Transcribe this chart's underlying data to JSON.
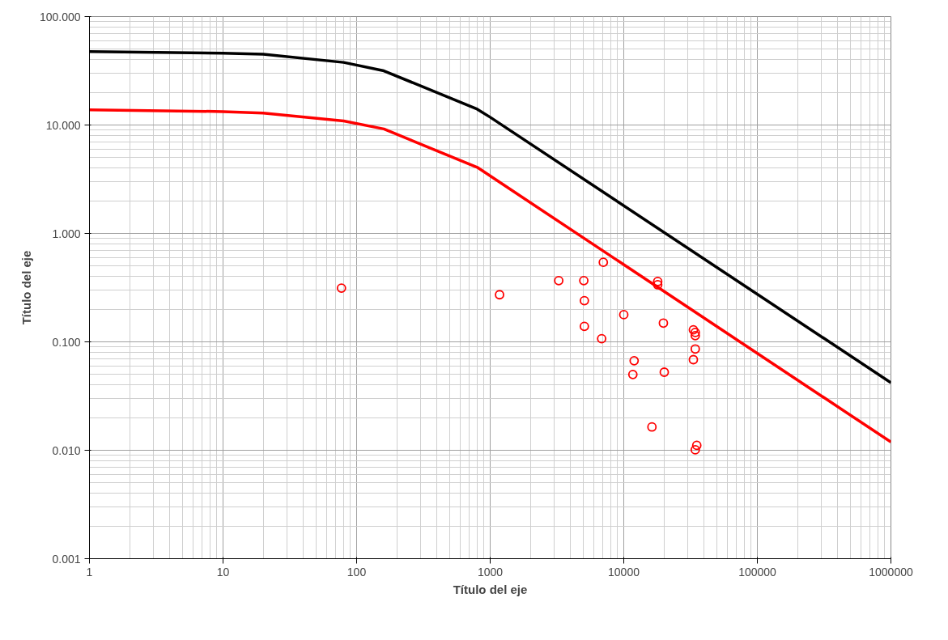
{
  "chart_data": {
    "type": "scatter",
    "xlabel": "Título del eje",
    "ylabel": "Título del eje",
    "log": "xy",
    "grid": true,
    "xlim": [
      1,
      1000000
    ],
    "ylim": [
      0.001,
      100
    ],
    "xticks": [
      1,
      10,
      100,
      1000,
      10000,
      100000,
      1000000
    ],
    "yticks": [
      {
        "value": 0.001,
        "label": "0.001"
      },
      {
        "value": 0.01,
        "label": "0.010"
      },
      {
        "value": 0.1,
        "label": "0.100"
      },
      {
        "value": 1,
        "label": "1.000"
      },
      {
        "value": 10,
        "label": "10.000"
      },
      {
        "value": 100,
        "label": "100.000"
      }
    ],
    "series": [
      {
        "type": "line",
        "color": "#000000",
        "line_style": "solid",
        "marker": "none",
        "x": [
          1,
          10,
          20,
          80,
          160,
          800,
          1000,
          1000000
        ],
        "values": [
          47.6,
          46,
          45,
          37.8,
          31.6,
          14,
          11.8,
          0.042
        ]
      },
      {
        "type": "line",
        "color": "#ff0000",
        "line_style": "solid",
        "marker": "none",
        "x": [
          1,
          10,
          20,
          80,
          160,
          800,
          1000000
        ],
        "values": [
          13.8,
          13.3,
          12.9,
          10.9,
          9.2,
          4.07,
          0.0119
        ]
      },
      {
        "color": "#ff0000",
        "marker": "circle",
        "x": [
          77,
          1175,
          3260,
          5020,
          5070,
          5070,
          7030,
          6830,
          10000,
          11960,
          11700,
          17950,
          17950,
          19800,
          20100,
          16250,
          33200,
          34300,
          34300,
          34300,
          33200,
          35200,
          34300
        ],
        "values": [
          0.313,
          0.272,
          0.367,
          0.367,
          0.24,
          0.139,
          0.542,
          0.107,
          0.178,
          0.067,
          0.05,
          0.36,
          0.336,
          0.149,
          0.0525,
          0.0164,
          0.129,
          0.122,
          0.114,
          0.086,
          0.0685,
          0.0111,
          0.0101
        ]
      }
    ]
  }
}
